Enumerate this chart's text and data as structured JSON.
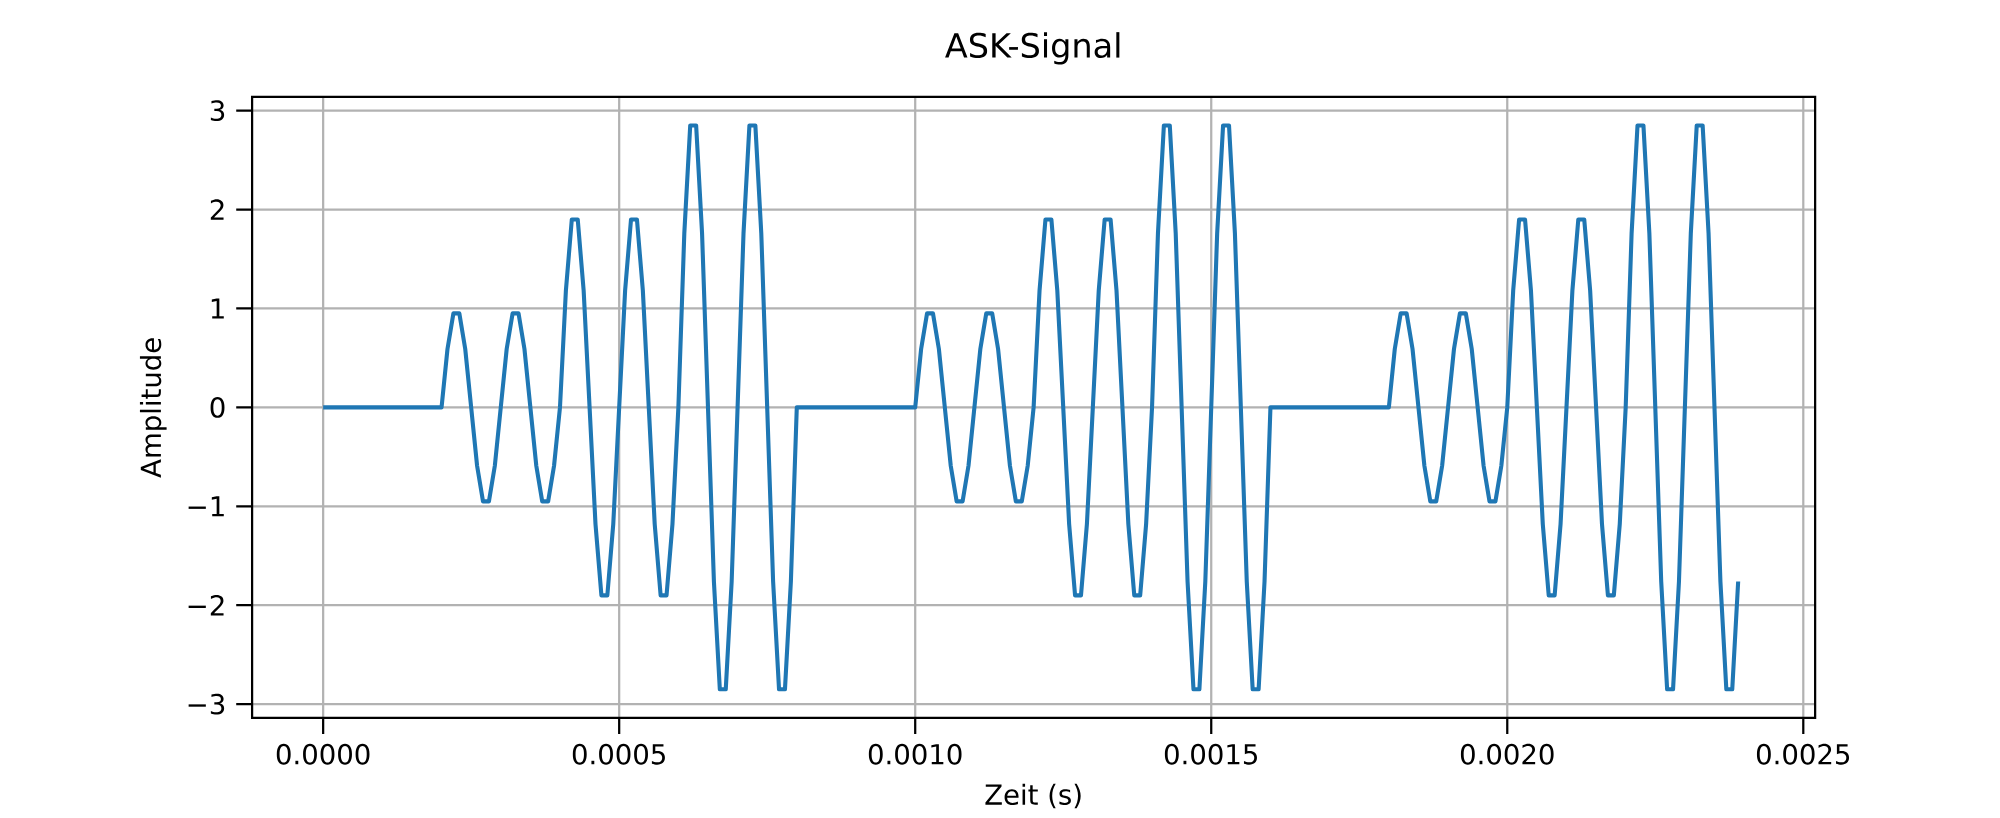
{
  "chart_data": {
    "type": "line",
    "title": "ASK-Signal",
    "xlabel": "Zeit (s)",
    "ylabel": "Amplitude",
    "x": [
      0.0,
      1e-05,
      2e-05,
      3e-05,
      4e-05,
      5e-05,
      6e-05,
      7e-05,
      8e-05,
      9e-05,
      0.0001,
      0.00011,
      0.00012,
      0.00013,
      0.00014,
      0.00015,
      0.00016,
      0.00017,
      0.00018,
      0.00019,
      0.0002,
      0.00021,
      0.00022,
      0.00023,
      0.00024,
      0.00025,
      0.00026,
      0.00027,
      0.00028,
      0.00029,
      0.0003,
      0.00031,
      0.00032,
      0.00033,
      0.00034,
      0.00035,
      0.00036,
      0.00037,
      0.00038,
      0.00039,
      0.0004,
      0.00041,
      0.00042,
      0.00043,
      0.00044,
      0.00045,
      0.00046,
      0.00047,
      0.00048,
      0.00049,
      0.0005,
      0.00051,
      0.00052,
      0.00053,
      0.00054,
      0.00055,
      0.00056,
      0.00057,
      0.00058,
      0.00059,
      0.0006,
      0.00061,
      0.00062,
      0.00063,
      0.00064,
      0.00065,
      0.00066,
      0.00067,
      0.00068,
      0.00069,
      0.0007,
      0.00071,
      0.00072,
      0.00073,
      0.00074,
      0.00075,
      0.00076,
      0.00077,
      0.00078,
      0.00079,
      0.0008,
      0.00081,
      0.00082,
      0.00083,
      0.00084,
      0.00085,
      0.00086,
      0.00087,
      0.00088,
      0.00089,
      0.0009,
      0.00091,
      0.00092,
      0.00093,
      0.00094,
      0.00095,
      0.00096,
      0.00097,
      0.00098,
      0.00099,
      0.001,
      0.00101,
      0.00102,
      0.00103,
      0.00104,
      0.00105,
      0.00106,
      0.00107,
      0.00108,
      0.00109,
      0.0011,
      0.00111,
      0.00112,
      0.00113,
      0.00114,
      0.00115,
      0.00116,
      0.00117,
      0.00118,
      0.00119,
      0.0012,
      0.00121,
      0.00122,
      0.00123,
      0.00124,
      0.00125,
      0.00126,
      0.00127,
      0.00128,
      0.00129,
      0.0013,
      0.00131,
      0.00132,
      0.00133,
      0.00134,
      0.00135,
      0.00136,
      0.00137,
      0.00138,
      0.00139,
      0.0014,
      0.00141,
      0.00142,
      0.00143,
      0.00144,
      0.00145,
      0.00146,
      0.00147,
      0.00148,
      0.00149,
      0.0015,
      0.00151,
      0.00152,
      0.00153,
      0.00154,
      0.00155,
      0.00156,
      0.00157,
      0.00158,
      0.00159,
      0.0016,
      0.00161,
      0.00162,
      0.00163,
      0.00164,
      0.00165,
      0.00166,
      0.00167,
      0.00168,
      0.00169,
      0.0017,
      0.00171,
      0.00172,
      0.00173,
      0.00174,
      0.00175,
      0.00176,
      0.00177,
      0.00178,
      0.00179,
      0.0018,
      0.00181,
      0.00182,
      0.00183,
      0.00184,
      0.00185,
      0.00186,
      0.00187,
      0.00188,
      0.00189,
      0.0019,
      0.00191,
      0.00192,
      0.00193,
      0.00194,
      0.00195,
      0.00196,
      0.00197,
      0.00198,
      0.00199,
      0.002,
      0.00201,
      0.00202,
      0.00203,
      0.00204,
      0.00205,
      0.00206,
      0.00207,
      0.00208,
      0.00209,
      0.0021,
      0.00211,
      0.00212,
      0.00213,
      0.00214,
      0.00215,
      0.00216,
      0.00217,
      0.00218,
      0.00219,
      0.0022,
      0.00221,
      0.00222,
      0.00223,
      0.00224,
      0.00225,
      0.00226,
      0.00227,
      0.00228,
      0.00229,
      0.0023,
      0.00231,
      0.00232,
      0.00233,
      0.00234,
      0.00235,
      0.00236,
      0.00237,
      0.00238,
      0.00239
    ],
    "values": [
      0,
      0,
      0,
      0,
      0,
      0,
      0,
      0,
      0,
      0,
      0,
      0,
      0,
      0,
      0,
      0,
      0,
      0,
      0,
      0,
      0,
      0.59,
      0.95,
      0.95,
      0.59,
      0,
      -0.59,
      -0.95,
      -0.95,
      -0.59,
      0,
      0.59,
      0.95,
      0.95,
      0.59,
      0,
      -0.59,
      -0.95,
      -0.95,
      -0.59,
      0,
      1.18,
      1.9,
      1.9,
      1.18,
      0,
      -1.18,
      -1.9,
      -1.9,
      -1.18,
      0,
      1.18,
      1.9,
      1.9,
      1.18,
      0,
      -1.18,
      -1.9,
      -1.9,
      -1.18,
      0,
      1.76,
      2.85,
      2.85,
      1.76,
      0,
      -1.76,
      -2.85,
      -2.85,
      -1.76,
      0,
      1.76,
      2.85,
      2.85,
      1.76,
      0,
      -1.76,
      -2.85,
      -2.85,
      -1.76,
      0,
      0,
      0,
      0,
      0,
      0,
      0,
      0,
      0,
      0,
      0,
      0,
      0,
      0,
      0,
      0,
      0,
      0,
      0,
      0,
      0,
      0.59,
      0.95,
      0.95,
      0.59,
      0,
      -0.59,
      -0.95,
      -0.95,
      -0.59,
      0,
      0.59,
      0.95,
      0.95,
      0.59,
      0,
      -0.59,
      -0.95,
      -0.95,
      -0.59,
      0,
      1.18,
      1.9,
      1.9,
      1.18,
      0,
      -1.18,
      -1.9,
      -1.9,
      -1.18,
      0,
      1.18,
      1.9,
      1.9,
      1.18,
      0,
      -1.18,
      -1.9,
      -1.9,
      -1.18,
      0,
      1.76,
      2.85,
      2.85,
      1.76,
      0,
      -1.76,
      -2.85,
      -2.85,
      -1.76,
      0,
      1.76,
      2.85,
      2.85,
      1.76,
      0,
      -1.76,
      -2.85,
      -2.85,
      -1.76,
      0,
      0,
      0,
      0,
      0,
      0,
      0,
      0,
      0,
      0,
      0,
      0,
      0,
      0,
      0,
      0,
      0,
      0,
      0,
      0,
      0,
      0.59,
      0.95,
      0.95,
      0.59,
      0,
      -0.59,
      -0.95,
      -0.95,
      -0.59,
      0,
      0.59,
      0.95,
      0.95,
      0.59,
      0,
      -0.59,
      -0.95,
      -0.95,
      -0.59,
      0,
      1.18,
      1.9,
      1.9,
      1.18,
      0,
      -1.18,
      -1.9,
      -1.9,
      -1.18,
      0,
      1.18,
      1.9,
      1.9,
      1.18,
      0,
      -1.18,
      -1.9,
      -1.9,
      -1.18,
      0,
      1.76,
      2.85,
      2.85,
      1.76,
      0,
      -1.76,
      -2.85,
      -2.85,
      -1.76,
      0,
      1.76,
      2.85,
      2.85,
      1.76,
      0,
      -1.76,
      -2.85,
      -2.85,
      -1.76
    ],
    "color": "#1f77b4",
    "xlim": [
      -0.00012,
      0.00252
    ],
    "ylim": [
      -3.14,
      3.14
    ],
    "xticks": [
      {
        "value": 0,
        "label": "0.0000"
      },
      {
        "value": 0.0005,
        "label": "0.0005"
      },
      {
        "value": 0.001,
        "label": "0.0010"
      },
      {
        "value": 0.0015,
        "label": "0.0015"
      },
      {
        "value": 0.002,
        "label": "0.0020"
      },
      {
        "value": 0.0025,
        "label": "0.0025"
      }
    ],
    "yticks": [
      {
        "value": -3,
        "label": "−3"
      },
      {
        "value": -2,
        "label": "−2"
      },
      {
        "value": -1,
        "label": "−1"
      },
      0,
      1,
      2,
      3
    ],
    "grid": true,
    "marker": "none",
    "line_style": "solid"
  }
}
